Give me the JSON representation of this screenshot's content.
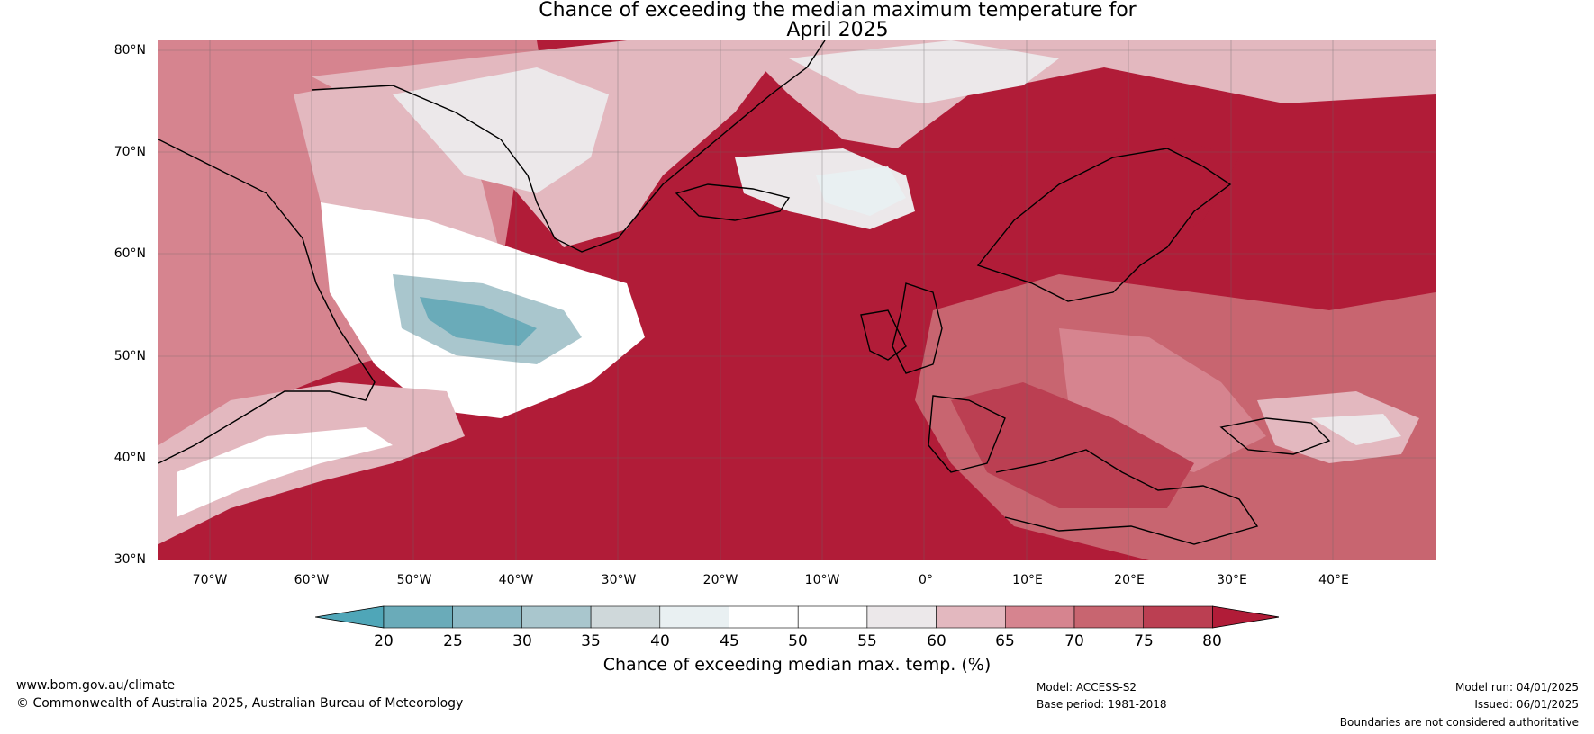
{
  "title": {
    "line1": "Chance of exceeding the median maximum temperature for",
    "line2": "April 2025"
  },
  "map": {
    "lat_labels": [
      "80°N",
      "70°N",
      "60°N",
      "50°N",
      "40°N",
      "30°N"
    ],
    "lon_labels": [
      "70°W",
      "60°W",
      "50°W",
      "40°W",
      "30°W",
      "20°W",
      "10°W",
      "0°",
      "10°E",
      "20°E",
      "30°E",
      "40°E"
    ],
    "lat_range": [
      30,
      81
    ],
    "lon_range": [
      -75,
      50
    ],
    "dominant_color": "#b11c38",
    "regions": [
      {
        "name": "Greenland interior",
        "chance_pct": 55
      },
      {
        "name": "Labrador Sea",
        "chance_pct": 45
      },
      {
        "name": "North Atlantic south of Greenland",
        "chance_pct": 25
      },
      {
        "name": "Iceland",
        "chance_pct": 45
      },
      {
        "name": "Central North Atlantic",
        "chance_pct": 80
      },
      {
        "name": "Europe",
        "chance_pct": 75
      },
      {
        "name": "Scandinavia",
        "chance_pct": 80
      },
      {
        "name": "Western Atlantic off North America",
        "chance_pct": 60
      }
    ]
  },
  "colorbar": {
    "ticks": [
      "20",
      "25",
      "30",
      "35",
      "40",
      "45",
      "50",
      "55",
      "60",
      "65",
      "70",
      "75",
      "80"
    ],
    "colors": [
      "#6aabb9",
      "#8ab8c4",
      "#a9c6cd",
      "#cfd8da",
      "#e9f0f2",
      "#ffffff",
      "#ffffff",
      "#ece8ea",
      "#e3b8bf",
      "#d6848f",
      "#c86570",
      "#bb3f52"
    ],
    "under_color": "#4fa6b8",
    "over_color": "#b11c38",
    "label": "Chance of exceeding median max. temp. (%)"
  },
  "footer": {
    "website": "www.bom.gov.au/climate",
    "copyright": "© Commonwealth of Australia 2025, Australian Bureau of Meteorology",
    "model": "Model: ACCESS-S2",
    "base_period": "Base period: 1981-2018",
    "model_run": "Model run: 04/01/2025",
    "issued": "Issued: 06/01/2025",
    "boundaries": "Boundaries are not considered authoritative"
  }
}
